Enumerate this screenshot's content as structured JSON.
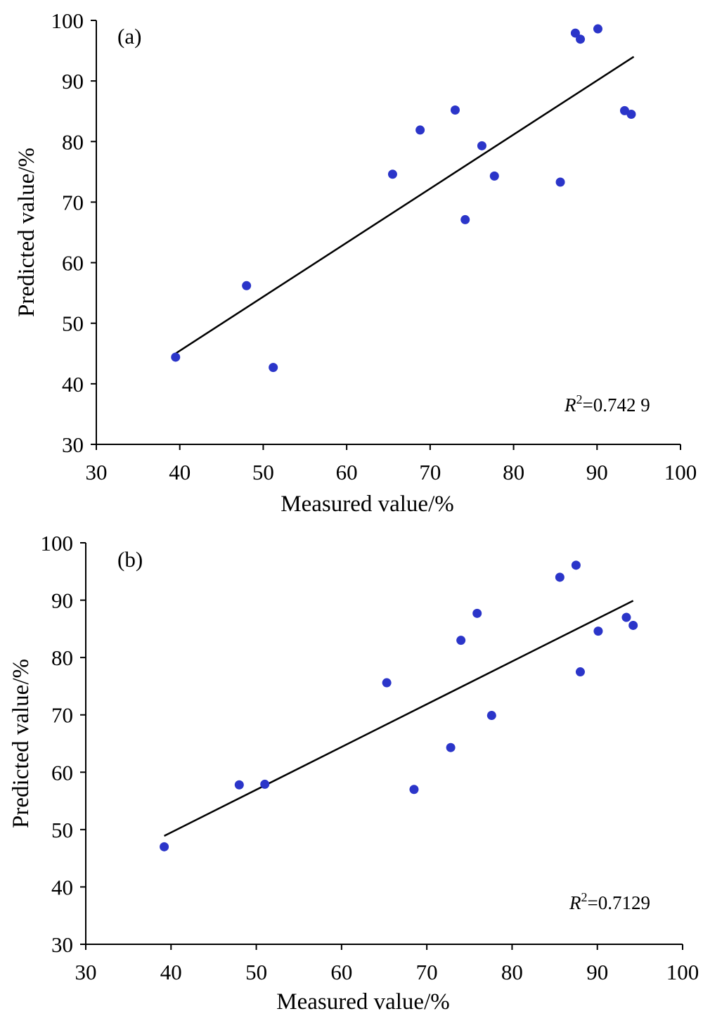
{
  "chart_data": [
    {
      "type": "scatter",
      "panel_label": "(a)",
      "xlabel": "Measured value/%",
      "ylabel": "Predicted value/%",
      "xlim": [
        30,
        100
      ],
      "ylim": [
        30,
        100
      ],
      "xticks": [
        30,
        40,
        50,
        60,
        70,
        80,
        90,
        100
      ],
      "yticks": [
        30,
        40,
        50,
        60,
        70,
        80,
        90,
        100
      ],
      "annotation": {
        "r2_prefix": "R",
        "r2_sup": "2",
        "r2_value": "=0.742 9"
      },
      "point_color": "#2b35c9",
      "series": [
        {
          "points": [
            {
              "x": 39.5,
              "y": 44.4
            },
            {
              "x": 48.0,
              "y": 56.2
            },
            {
              "x": 51.2,
              "y": 42.7
            },
            {
              "x": 65.5,
              "y": 74.6
            },
            {
              "x": 68.8,
              "y": 81.9
            },
            {
              "x": 73.0,
              "y": 85.2
            },
            {
              "x": 74.2,
              "y": 67.1
            },
            {
              "x": 76.2,
              "y": 79.3
            },
            {
              "x": 77.7,
              "y": 74.3
            },
            {
              "x": 85.6,
              "y": 73.3
            },
            {
              "x": 87.4,
              "y": 97.9
            },
            {
              "x": 88.0,
              "y": 96.9
            },
            {
              "x": 90.1,
              "y": 98.6
            },
            {
              "x": 93.3,
              "y": 85.1
            },
            {
              "x": 94.1,
              "y": 84.5
            }
          ]
        }
      ],
      "fit_line": {
        "x": [
          39.5,
          94.4
        ],
        "y": [
          45.0,
          94.0
        ]
      }
    },
    {
      "type": "scatter",
      "panel_label": "(b)",
      "xlabel": "Measured value/%",
      "ylabel": "Predicted value/%",
      "xlim": [
        30,
        100
      ],
      "ylim": [
        30,
        100
      ],
      "xticks": [
        30,
        40,
        50,
        60,
        70,
        80,
        90,
        100
      ],
      "yticks": [
        30,
        40,
        50,
        60,
        70,
        80,
        90,
        100
      ],
      "annotation": {
        "r2_prefix": "R",
        "r2_sup": "2",
        "r2_value": "=0.7129"
      },
      "point_color": "#2b35c9",
      "series": [
        {
          "points": [
            {
              "x": 39.2,
              "y": 47.0
            },
            {
              "x": 48.0,
              "y": 57.8
            },
            {
              "x": 51.0,
              "y": 57.9
            },
            {
              "x": 65.3,
              "y": 75.6
            },
            {
              "x": 68.5,
              "y": 57.0
            },
            {
              "x": 72.8,
              "y": 64.3
            },
            {
              "x": 74.0,
              "y": 83.0
            },
            {
              "x": 75.9,
              "y": 87.7
            },
            {
              "x": 77.6,
              "y": 69.9
            },
            {
              "x": 85.6,
              "y": 94.0
            },
            {
              "x": 87.5,
              "y": 96.1
            },
            {
              "x": 88.0,
              "y": 77.5
            },
            {
              "x": 90.1,
              "y": 84.6
            },
            {
              "x": 93.4,
              "y": 87.0
            },
            {
              "x": 94.2,
              "y": 85.6
            }
          ]
        }
      ],
      "fit_line": {
        "x": [
          39.2,
          94.2
        ],
        "y": [
          48.9,
          89.9
        ]
      }
    }
  ]
}
